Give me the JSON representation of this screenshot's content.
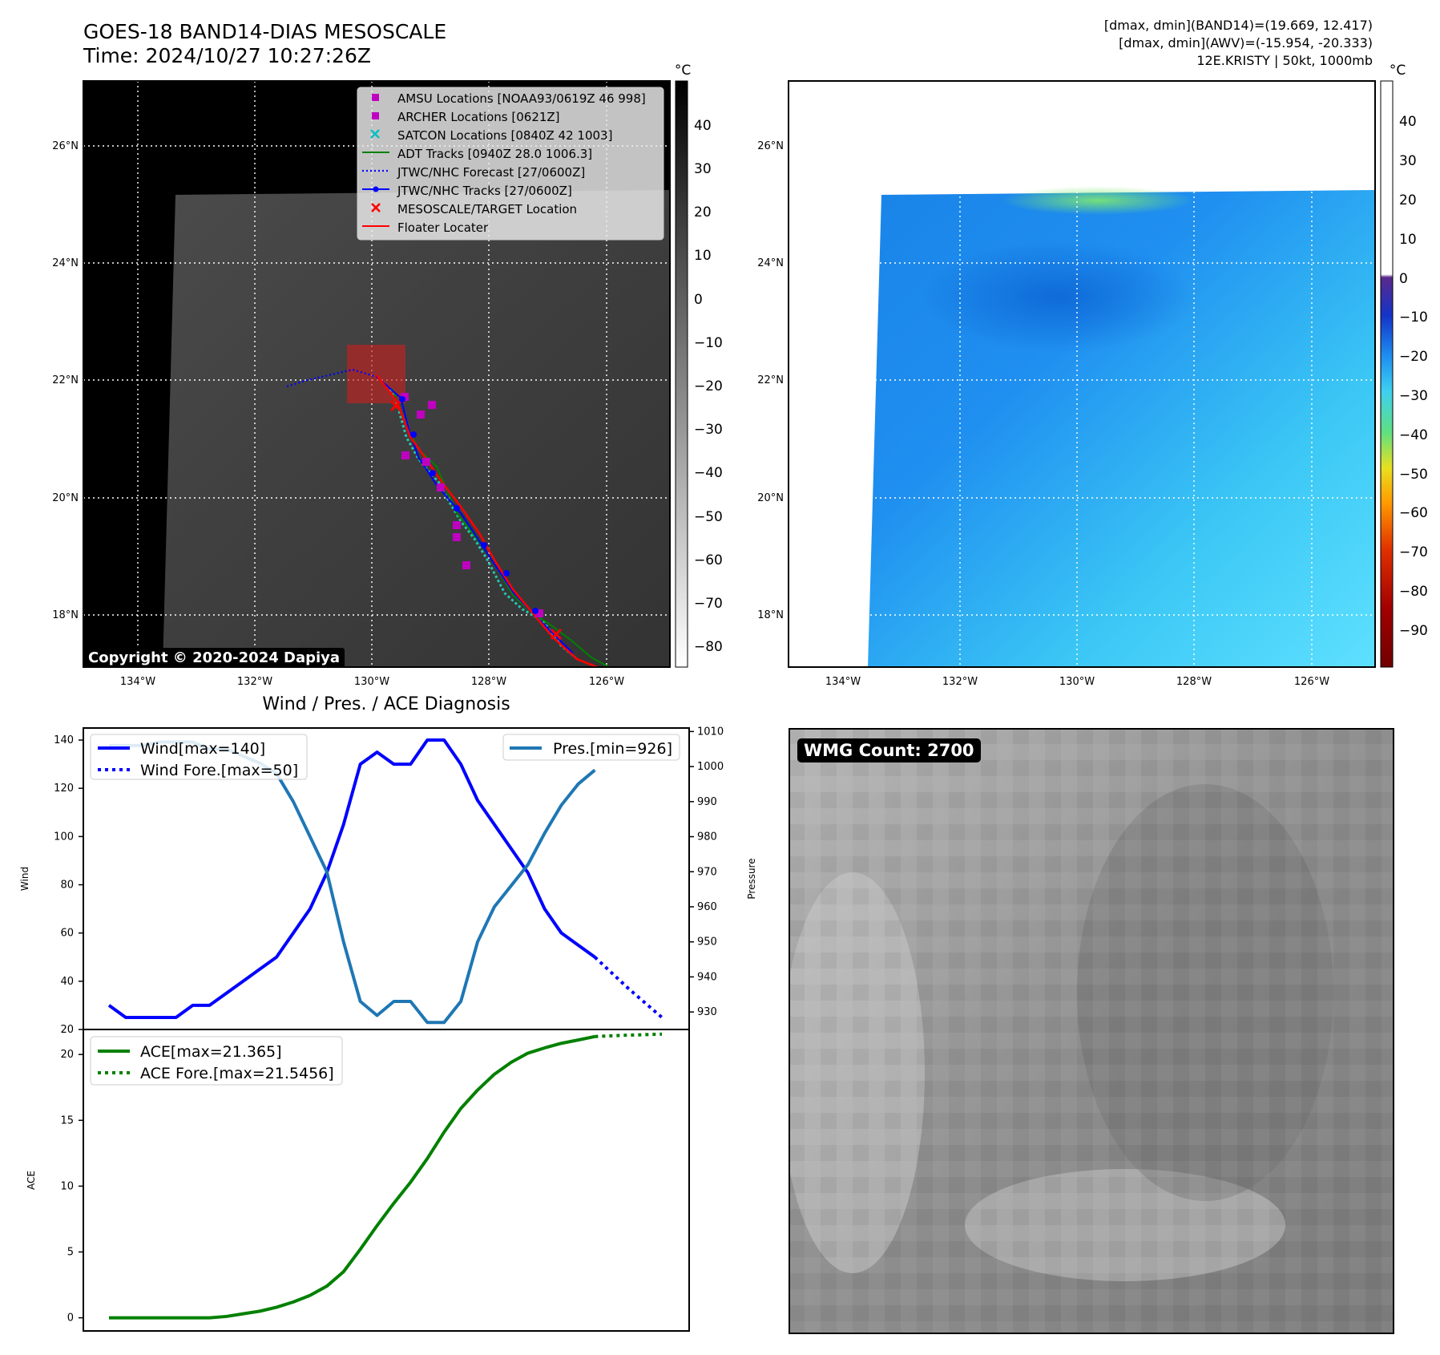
{
  "header": {
    "title_line1": "GOES-18 BAND14-DIAS MESOSCALE",
    "title_line2": "Time: 2024/10/27 10:27:26Z",
    "info_line1": "[dmax, dmin](BAND14)=(19.669, 12.417)",
    "info_line2": "[dmax, dmin](AWV)=(-15.954, -20.333)",
    "info_line3": "12E.KRISTY | 50kt, 1000mb"
  },
  "map_axes": {
    "lat_labels": [
      "26°N",
      "24°N",
      "22°N",
      "20°N",
      "18°N"
    ],
    "lon_labels": [
      "134°W",
      "132°W",
      "130°W",
      "128°W",
      "126°W"
    ]
  },
  "ir_panel": {
    "colorbar_unit": "°C",
    "colorbar_ticks": [
      "40",
      "30",
      "20",
      "10",
      "0",
      "−10",
      "−20",
      "−30",
      "−40",
      "−50",
      "−60",
      "−70",
      "−80"
    ],
    "copyright": "Copyright © 2020-2024 Dapiya",
    "legend": [
      "AMSU Locations [NOAA93/0619Z 46 998]",
      "ARCHER Locations [0621Z]",
      "SATCON Locations [0840Z 42 1003]",
      "ADT Tracks [0940Z 28.0 1006.3]",
      "JTWC/NHC Forecast [27/0600Z]",
      "JTWC/NHC Tracks [27/0600Z]",
      "MESOSCALE/TARGET Location",
      "Floater Locater"
    ],
    "legend_colors": {
      "amsu": "#c000c0",
      "archer": "#c000c0",
      "satcon": "#00c0c0",
      "adt": "#008000",
      "forecast": "#0000ff",
      "tracks": "#0000ff",
      "target": "#ff0000",
      "floater": "#ff0000"
    }
  },
  "wv_panel": {
    "colorbar_unit": "°C",
    "colorbar_ticks": [
      "40",
      "30",
      "20",
      "10",
      "0",
      "−10",
      "−20",
      "−30",
      "−40",
      "−50",
      "−60",
      "−70",
      "−80",
      "−90"
    ]
  },
  "wmg_panel": {
    "badge": "WMG Count: 2700"
  },
  "chart_data": [
    {
      "type": "line",
      "title": "Wind / Pres. / ACE Diagnosis",
      "ylabel": "Wind",
      "y2label": "Pressure",
      "ylim": [
        20,
        145
      ],
      "y2lim": [
        925,
        1011
      ],
      "yticks": [
        "140",
        "120",
        "100",
        "80",
        "60",
        "40",
        "20"
      ],
      "y2ticks": [
        "1010",
        "1000",
        "990",
        "980",
        "970",
        "960",
        "950",
        "940",
        "930"
      ],
      "legend_left": [
        "Wind[max=140]",
        "Wind Fore.[max=50]"
      ],
      "legend_right": [
        "Pres.[min=926]"
      ],
      "series": [
        {
          "name": "Wind[max=140]",
          "axis": "left",
          "color": "#0000ff",
          "style": "solid",
          "x": [
            0,
            1,
            2,
            3,
            4,
            5,
            6,
            7,
            8,
            9,
            10,
            11,
            12,
            13,
            14,
            15,
            16,
            17,
            18,
            19,
            20,
            21,
            22,
            23,
            24,
            25,
            26,
            27,
            28,
            29
          ],
          "values": [
            30,
            25,
            25,
            25,
            25,
            30,
            30,
            35,
            40,
            45,
            50,
            60,
            70,
            85,
            105,
            130,
            135,
            130,
            130,
            140,
            140,
            130,
            115,
            105,
            95,
            85,
            70,
            60,
            55,
            50
          ]
        },
        {
          "name": "Wind Fore.[max=50]",
          "axis": "left",
          "color": "#0000ff",
          "style": "dotted",
          "x": [
            29,
            31,
            33
          ],
          "values": [
            50,
            37,
            25
          ]
        },
        {
          "name": "Pres.[min=926]",
          "axis": "right",
          "color": "#1f77b4",
          "style": "solid",
          "x": [
            0,
            1,
            2,
            3,
            4,
            5,
            6,
            7,
            8,
            9,
            10,
            11,
            12,
            13,
            14,
            15,
            16,
            17,
            18,
            19,
            20,
            21,
            22,
            23,
            24,
            25,
            26,
            27,
            28,
            29
          ],
          "values": [
            1006,
            1006,
            1006,
            1007,
            1007,
            1007,
            1005,
            1005,
            1003,
            1001,
            998,
            990,
            980,
            970,
            950,
            933,
            929,
            933,
            933,
            927,
            927,
            933,
            950,
            960,
            966,
            972,
            981,
            989,
            995,
            999
          ]
        }
      ]
    },
    {
      "type": "line",
      "ylabel": "ACE",
      "ylim": [
        -1,
        21.9
      ],
      "yticks": [
        "20",
        "15",
        "10",
        "5",
        "0"
      ],
      "legend": [
        "ACE[max=21.365]",
        "ACE Fore.[max=21.5456]"
      ],
      "series": [
        {
          "name": "ACE[max=21.365]",
          "color": "#008000",
          "style": "solid",
          "x": [
            0,
            1,
            2,
            3,
            4,
            5,
            6,
            7,
            8,
            9,
            10,
            11,
            12,
            13,
            14,
            15,
            16,
            17,
            18,
            19,
            20,
            21,
            22,
            23,
            24,
            25,
            26,
            27,
            28,
            29
          ],
          "values": [
            0,
            0,
            0,
            0,
            0,
            0,
            0,
            0.1,
            0.3,
            0.5,
            0.8,
            1.2,
            1.7,
            2.4,
            3.5,
            5.2,
            7.0,
            8.7,
            10.3,
            12.1,
            14.1,
            15.9,
            17.3,
            18.5,
            19.4,
            20.1,
            20.5,
            20.85,
            21.1,
            21.365
          ]
        },
        {
          "name": "ACE Fore.[max=21.5456]",
          "color": "#008000",
          "style": "dotted",
          "x": [
            29,
            31,
            33
          ],
          "values": [
            21.365,
            21.47,
            21.5456
          ]
        }
      ]
    }
  ]
}
